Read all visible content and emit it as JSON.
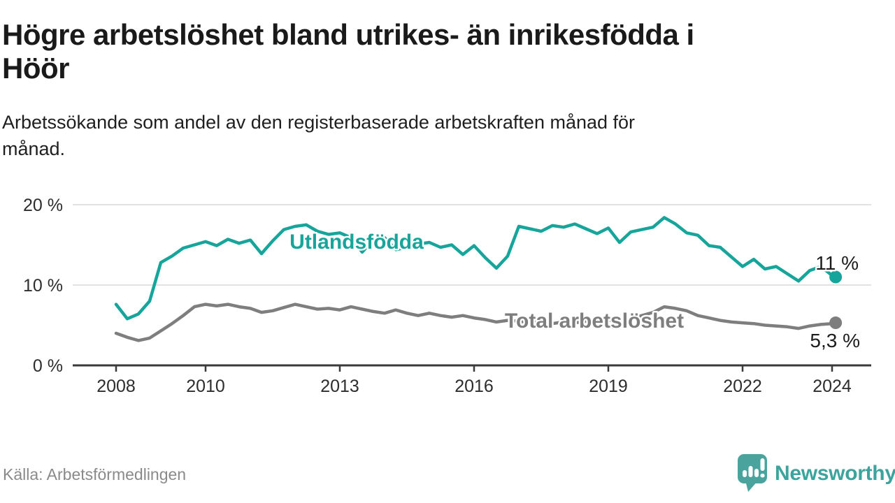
{
  "header": {
    "title": "Högre arbetslöshet bland utrikes- än inrikesfödda i Höör",
    "title_lines": [
      "Högre arbetslöshet bland utrikes- än inrikesfödda i",
      "Höör"
    ],
    "subtitle": "Arbetssökande som andel av den registerbaserade arbetskraften månad för månad.",
    "subtitle_lines": [
      "Arbetssökande som andel av den registerbaserade arbetskraften månad för",
      "månad."
    ]
  },
  "footer": {
    "source": "Källa: Arbetsförmedlingen",
    "brand": "Newsworthy",
    "brand_color": "#3da49d",
    "logo_icon": "speech-bubble-bar-chart-exclamation-icon",
    "logo_color": "#4aa49d"
  },
  "chart_data": {
    "type": "line",
    "title": "Högre arbetslöshet bland utrikes- än inrikesfödda i Höör",
    "ylabel": "",
    "xlabel": "",
    "y_unit": "%",
    "ylim": [
      0,
      21.5
    ],
    "xlim": [
      2007.1,
      2024.9
    ],
    "grid": "horizontal",
    "legend_position": "inline-labels",
    "x_ticks": [
      {
        "value": 2008,
        "label": "2008"
      },
      {
        "value": 2010,
        "label": "2010"
      },
      {
        "value": 2013,
        "label": "2013"
      },
      {
        "value": 2016,
        "label": "2016"
      },
      {
        "value": 2019,
        "label": "2019"
      },
      {
        "value": 2022,
        "label": "2022"
      },
      {
        "value": 2024,
        "label": "2024"
      }
    ],
    "y_ticks": [
      {
        "value": 0,
        "label": "0 %"
      },
      {
        "value": 10,
        "label": "10 %"
      },
      {
        "value": 20,
        "label": "20 %"
      }
    ],
    "x": [
      2008.0,
      2008.25,
      2008.5,
      2008.75,
      2009.0,
      2009.25,
      2009.5,
      2009.75,
      2010.0,
      2010.25,
      2010.5,
      2010.75,
      2011.0,
      2011.25,
      2011.5,
      2011.75,
      2012.0,
      2012.25,
      2012.5,
      2012.75,
      2013.0,
      2013.25,
      2013.5,
      2013.75,
      2014.0,
      2014.25,
      2014.5,
      2014.75,
      2015.0,
      2015.25,
      2015.5,
      2015.75,
      2016.0,
      2016.25,
      2016.5,
      2016.75,
      2017.0,
      2017.25,
      2017.5,
      2017.75,
      2018.0,
      2018.25,
      2018.5,
      2018.75,
      2019.0,
      2019.25,
      2019.5,
      2019.75,
      2020.0,
      2020.25,
      2020.5,
      2020.75,
      2021.0,
      2021.25,
      2021.5,
      2021.75,
      2022.0,
      2022.25,
      2022.5,
      2022.75,
      2023.0,
      2023.25,
      2023.5,
      2023.75,
      2024.0,
      2024.08
    ],
    "series": [
      {
        "name": "Utlandsfödda",
        "inline_label": "Utlandsfödda",
        "end_label": "11 %",
        "end_value": 11.0,
        "color": "#17a59b",
        "values": [
          7.6,
          5.8,
          6.4,
          8.0,
          12.8,
          13.6,
          14.6,
          15.0,
          15.4,
          14.9,
          15.7,
          15.2,
          15.6,
          13.9,
          15.5,
          16.9,
          17.3,
          17.5,
          16.7,
          16.3,
          16.5,
          15.9,
          14.1,
          15.7,
          15.9,
          14.4,
          14.7,
          15.1,
          15.3,
          14.7,
          15.0,
          13.8,
          14.9,
          13.4,
          12.1,
          13.6,
          17.3,
          17.0,
          16.7,
          17.4,
          17.2,
          17.6,
          17.0,
          16.4,
          17.1,
          15.3,
          16.6,
          16.9,
          17.2,
          18.4,
          17.6,
          16.5,
          16.2,
          14.9,
          14.7,
          13.5,
          12.3,
          13.2,
          12.0,
          12.3,
          11.4,
          10.5,
          11.8,
          12.3,
          11.2,
          11.0
        ]
      },
      {
        "name": "Total arbetslöshet",
        "inline_label": "Total arbetslöshet",
        "end_label": "5,3 %",
        "end_value": 5.3,
        "color": "#7e7e7e",
        "values": [
          4.0,
          3.5,
          3.1,
          3.4,
          4.3,
          5.2,
          6.2,
          7.3,
          7.6,
          7.4,
          7.6,
          7.3,
          7.1,
          6.6,
          6.8,
          7.2,
          7.6,
          7.3,
          7.0,
          7.1,
          6.9,
          7.3,
          7.0,
          6.7,
          6.5,
          6.9,
          6.5,
          6.2,
          6.5,
          6.2,
          6.0,
          6.2,
          5.9,
          5.7,
          5.4,
          5.6,
          5.5,
          5.3,
          5.5,
          5.2,
          5.4,
          5.3,
          5.5,
          5.4,
          5.6,
          5.5,
          5.8,
          6.2,
          6.6,
          7.3,
          7.1,
          6.8,
          6.2,
          5.9,
          5.6,
          5.4,
          5.3,
          5.2,
          5.0,
          4.9,
          4.8,
          4.6,
          4.9,
          5.1,
          5.2,
          5.3
        ]
      }
    ]
  }
}
